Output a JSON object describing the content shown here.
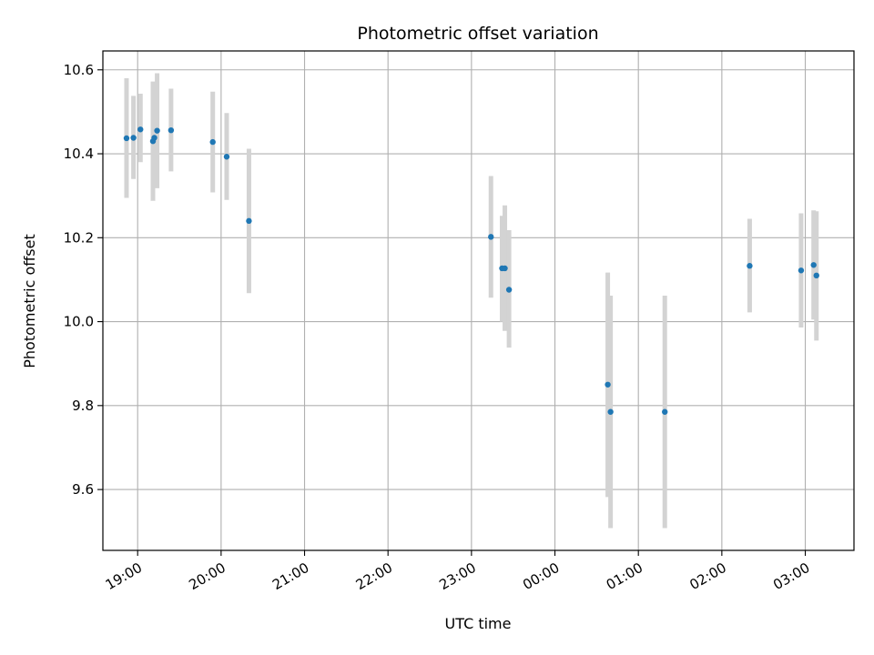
{
  "chart_data": {
    "type": "scatter",
    "title": "Photometric offset variation",
    "xlabel": "UTC time",
    "ylabel": "Photometric offset",
    "x_unit": "UTC time (HH:MM)",
    "xlim": [
      "18:35",
      "03:35"
    ],
    "ylim": [
      9.455,
      10.645
    ],
    "grid": true,
    "marker_color": "#1f77b4",
    "errorbar_color": "#d3d3d3",
    "x_ticks": [
      "19:00",
      "20:00",
      "21:00",
      "22:00",
      "23:00",
      "00:00",
      "01:00",
      "02:00",
      "03:00"
    ],
    "y_ticks": [
      9.6,
      9.8,
      10.0,
      10.2,
      10.4,
      10.6
    ],
    "y_tick_labels": [
      "9.6",
      "9.8",
      "10.0",
      "10.2",
      "10.4",
      "10.6"
    ],
    "points": [
      {
        "x": "18:52",
        "y": 10.437,
        "lo": 10.295,
        "hi": 10.58
      },
      {
        "x": "18:57",
        "y": 10.438,
        "lo": 10.34,
        "hi": 10.538
      },
      {
        "x": "19:02",
        "y": 10.458,
        "lo": 10.38,
        "hi": 10.543
      },
      {
        "x": "19:11",
        "y": 10.43,
        "lo": 10.288,
        "hi": 10.572
      },
      {
        "x": "19:12",
        "y": 10.438,
        "lo": 10.32,
        "hi": 10.562
      },
      {
        "x": "19:14",
        "y": 10.455,
        "lo": 10.318,
        "hi": 10.592
      },
      {
        "x": "19:24",
        "y": 10.456,
        "lo": 10.358,
        "hi": 10.555
      },
      {
        "x": "19:54",
        "y": 10.428,
        "lo": 10.308,
        "hi": 10.548
      },
      {
        "x": "20:04",
        "y": 10.393,
        "lo": 10.29,
        "hi": 10.497
      },
      {
        "x": "20:20",
        "y": 10.24,
        "lo": 10.068,
        "hi": 10.412
      },
      {
        "x": "23:14",
        "y": 10.202,
        "lo": 10.057,
        "hi": 10.347
      },
      {
        "x": "23:22",
        "y": 10.127,
        "lo": 10.0,
        "hi": 10.252
      },
      {
        "x": "23:24",
        "y": 10.127,
        "lo": 9.978,
        "hi": 10.277
      },
      {
        "x": "23:27",
        "y": 10.076,
        "lo": 9.938,
        "hi": 10.218
      },
      {
        "x": "00:38",
        "y": 9.85,
        "lo": 9.582,
        "hi": 10.117
      },
      {
        "x": "00:40",
        "y": 9.785,
        "lo": 9.508,
        "hi": 10.062
      },
      {
        "x": "01:19",
        "y": 9.785,
        "lo": 9.508,
        "hi": 10.062
      },
      {
        "x": "02:20",
        "y": 10.133,
        "lo": 10.022,
        "hi": 10.245
      },
      {
        "x": "02:57",
        "y": 10.122,
        "lo": 9.986,
        "hi": 10.258
      },
      {
        "x": "03:06",
        "y": 10.135,
        "lo": 10.005,
        "hi": 10.265
      },
      {
        "x": "03:08",
        "y": 10.11,
        "lo": 9.955,
        "hi": 10.263
      }
    ]
  }
}
